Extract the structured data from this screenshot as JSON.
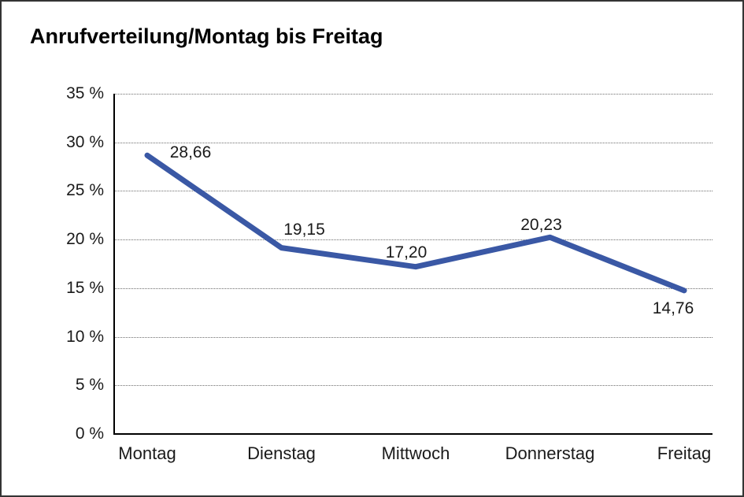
{
  "window": {
    "background": "#ffffff",
    "border_color": "#343434"
  },
  "chart_data": {
    "type": "line",
    "title": "Anrufverteilung/Montag bis Freitag",
    "categories": [
      "Montag",
      "Dienstag",
      "Mittwoch",
      "Donnerstag",
      "Freitag"
    ],
    "values": [
      28.66,
      19.15,
      17.2,
      20.23,
      14.76
    ],
    "point_labels": [
      "28,66",
      "19,15",
      "17,20",
      "20,23",
      "14,76"
    ],
    "xlabel": "",
    "ylabel": "",
    "ylim": [
      0,
      35
    ],
    "y_ticks": [
      {
        "value": 35,
        "label": "35 %"
      },
      {
        "value": 30,
        "label": "30 %"
      },
      {
        "value": 25,
        "label": "25 %"
      },
      {
        "value": 20,
        "label": "20 %"
      },
      {
        "value": 15,
        "label": "15 %"
      },
      {
        "value": 10,
        "label": "10 %"
      },
      {
        "value": 5,
        "label": "5 %"
      },
      {
        "value": 0,
        "label": "0 %"
      }
    ],
    "grid": "horizontal-dotted",
    "legend": "none",
    "colors": {
      "line": "#3a58a5",
      "text": "#1a1a1a",
      "axis": "#000000",
      "grid": "#6e6e6e"
    }
  }
}
